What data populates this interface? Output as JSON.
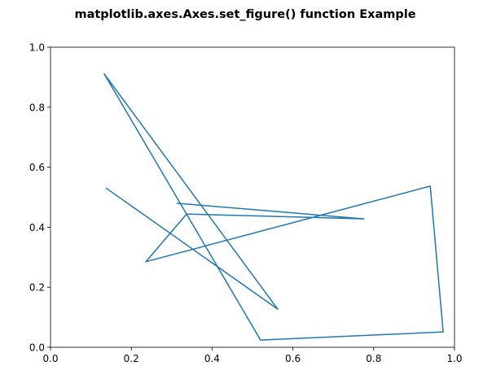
{
  "chart_data": {
    "type": "line",
    "title": "matplotlib.axes.Axes.set_figure() function Example",
    "x": [
      0.137,
      0.5625,
      0.133,
      0.52,
      0.972,
      0.94,
      0.236,
      0.337,
      0.776,
      0.3125
    ],
    "series": [
      {
        "color": "#1f77b4",
        "values": [
          0.531,
          0.127,
          0.911,
          0.024,
          0.051,
          0.537,
          0.285,
          0.444,
          0.428,
          0.48
        ]
      }
    ],
    "xlim": [
      0,
      1
    ],
    "ylim": [
      0,
      1
    ],
    "xticks": [
      {
        "value": 0,
        "label": "0.0"
      },
      0.2,
      0.4,
      0.6,
      0.8,
      {
        "value": 1,
        "label": "1.0"
      }
    ],
    "yticks": [
      {
        "value": 0,
        "label": "0.0"
      },
      0.2,
      0.4,
      0.6,
      0.8,
      {
        "value": 1,
        "label": "1.0"
      }
    ]
  }
}
